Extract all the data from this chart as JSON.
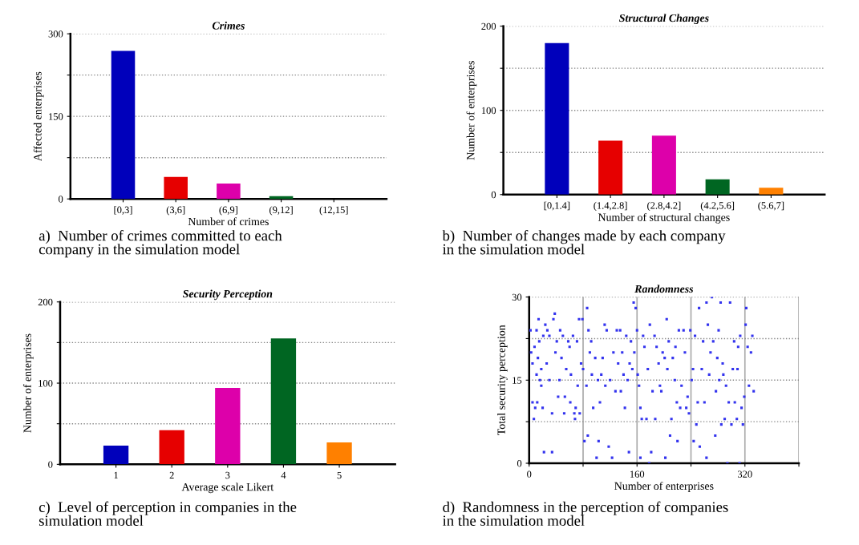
{
  "chart_data": [
    {
      "type": "bar",
      "title": "Crimes",
      "xlabel": "Number of crimes",
      "ylabel": "Affected enterprises",
      "categories": [
        "[0,3]",
        "(3,6]",
        "(6,9]",
        "(9,12]",
        "(12,15]"
      ],
      "values": [
        269,
        40,
        28,
        5,
        0
      ],
      "colors": [
        "#0000bb",
        "#e60000",
        "#dd00aa",
        "#006622",
        "#ff8000"
      ],
      "ylim": [
        0,
        300
      ],
      "yticks": [
        0,
        {
          "value": 75,
          "label": null
        },
        150,
        {
          "value": 225,
          "label": null
        },
        300
      ],
      "grid": "y",
      "annotations": [
        "a)  Number of crimes committed to each\ncompany in the simulation model"
      ]
    },
    {
      "type": "bar",
      "title": "Structural Changes",
      "xlabel": "Number of structural changes",
      "ylabel": "Number of enterprises",
      "categories": [
        "[0,1.4]",
        "(1.4,2.8]",
        "(2.8,4.2]",
        "(4.2,5.6]",
        "(5.6,7]"
      ],
      "values": [
        180,
        64,
        70,
        18,
        8
      ],
      "colors": [
        "#0000bb",
        "#e60000",
        "#dd00aa",
        "#006622",
        "#ff8000"
      ],
      "ylim": [
        0,
        200
      ],
      "yticks": [
        0,
        {
          "value": 50,
          "label": null
        },
        100,
        {
          "value": 150,
          "label": null
        },
        200
      ],
      "grid": "y",
      "annotations": [
        "b)  Number of changes made by each company\nin the simulation model"
      ]
    },
    {
      "type": "bar",
      "title": "Security Perception",
      "xlabel": "Average scale Likert",
      "ylabel": "Number of enterprises",
      "categories": [
        "1",
        "2",
        "3",
        "4",
        "5"
      ],
      "values": [
        23,
        42,
        94,
        155,
        27
      ],
      "colors": [
        "#0000bb",
        "#e60000",
        "#dd00aa",
        "#006622",
        "#ff8000"
      ],
      "ylim": [
        0,
        200
      ],
      "yticks": [
        0,
        {
          "value": 50,
          "label": null
        },
        100,
        {
          "value": 150,
          "label": null
        },
        200
      ],
      "grid": "y",
      "annotations": [
        "c)  Level of perception in companies in the\nsimulation model"
      ]
    },
    {
      "type": "scatter",
      "title": "Randomness",
      "xlabel": "Number of enterprises",
      "ylabel": "Total security perception",
      "marker": "square",
      "color": "#3333ee",
      "x": [
        2,
        3,
        5,
        5,
        7,
        8,
        9,
        11,
        11,
        12,
        13,
        14,
        15,
        16,
        18,
        18,
        20,
        21,
        22,
        24,
        26,
        27,
        30,
        30,
        34,
        34,
        36,
        38,
        39,
        41,
        43,
        45,
        46,
        48,
        50,
        52,
        53,
        55,
        58,
        60,
        61,
        62,
        65,
        67,
        68,
        69,
        71,
        72,
        74,
        75,
        77,
        79,
        80,
        82,
        85,
        86,
        87,
        88,
        90,
        92,
        93,
        95,
        98,
        100,
        102,
        103,
        105,
        107,
        109,
        112,
        113,
        115,
        118,
        120,
        123,
        125,
        128,
        130,
        132,
        135,
        136,
        138,
        140,
        142,
        144,
        146,
        148,
        149,
        151,
        153,
        155,
        156,
        158,
        160,
        161,
        163,
        165,
        165,
        167,
        169,
        171,
        174,
        176,
        178,
        179,
        181,
        183,
        186,
        187,
        189,
        192,
        194,
        196,
        198,
        201,
        202,
        204,
        205,
        207,
        209,
        211,
        213,
        216,
        217,
        219,
        220,
        222,
        224,
        226,
        229,
        231,
        233,
        235,
        237,
        239,
        241,
        243,
        244,
        246,
        248,
        250,
        252,
        253,
        256,
        258,
        260,
        263,
        263,
        265,
        267,
        269,
        271,
        273,
        276,
        277,
        279,
        281,
        282,
        284,
        285,
        287,
        288,
        290,
        292,
        294,
        296,
        298,
        300,
        302,
        304,
        305,
        308,
        309,
        310,
        312,
        313,
        315,
        317,
        319,
        321,
        322,
        324,
        326,
        329,
        331,
        333
      ],
      "values": [
        24,
        20,
        18,
        11,
        8,
        21,
        10,
        24,
        16,
        11,
        19,
        26,
        22,
        15,
        17,
        14,
        10,
        23,
        2,
        25,
        18,
        24,
        23,
        15,
        2,
        9,
        26,
        27,
        20,
        22,
        12,
        15,
        24,
        19,
        23,
        9,
        12,
        17,
        22,
        21,
        11,
        16,
        23,
        9,
        8,
        10,
        22,
        14,
        26,
        9,
        18,
        26,
        17,
        4,
        14,
        28,
        5,
        24,
        20,
        22,
        16,
        10,
        19,
        1,
        15,
        4,
        11,
        16,
        19,
        25,
        14,
        24,
        3,
        15,
        1,
        20,
        13,
        24,
        18,
        24,
        13,
        20,
        16,
        10,
        23,
        15,
        2,
        18,
        22,
        17,
        29,
        20,
        28,
        24,
        16,
        14,
        10,
        1,
        8,
        23,
        21,
        8,
        17,
        0,
        25,
        2,
        13,
        23,
        8,
        21,
        18,
        14,
        13,
        20,
        19,
        1,
        26,
        17,
        22,
        5,
        8,
        19,
        15,
        21,
        11,
        4,
        24,
        10,
        14,
        24,
        20,
        10,
        12,
        9,
        24,
        15,
        17,
        4,
        23,
        7,
        11,
        28,
        3,
        17,
        22,
        11,
        1,
        29,
        25,
        16,
        20,
        30,
        22,
        5,
        13,
        19,
        24,
        15,
        29,
        7,
        18,
        16,
        8,
        14,
        0,
        11,
        29,
        7,
        17,
        22,
        11,
        8,
        17,
        21,
        0,
        23,
        10,
        7,
        12,
        25,
        28,
        21,
        14,
        20,
        23,
        13
      ],
      "xlim": [
        0,
        400
      ],
      "xticks": [
        0,
        {
          "value": 80,
          "label": null
        },
        160,
        {
          "value": 240,
          "label": null
        },
        320,
        {
          "value": 400,
          "label": null
        }
      ],
      "ylim": [
        0,
        30
      ],
      "yticks": [
        0,
        {
          "value": 7.5,
          "label": null
        },
        15,
        {
          "value": 22.5,
          "label": null
        },
        30
      ],
      "grid": true,
      "annotations": [
        "d)  Randomness in the perception of companies\nin the simulation model"
      ]
    }
  ]
}
